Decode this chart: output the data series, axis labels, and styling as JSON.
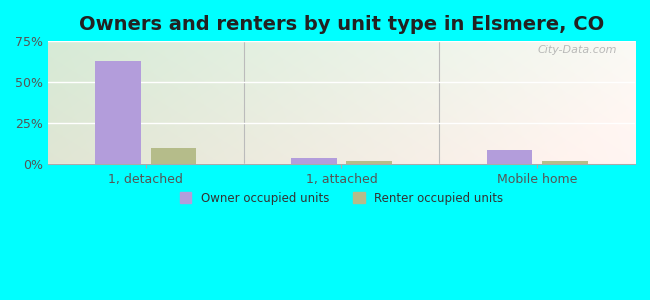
{
  "title": "Owners and renters by unit type in Elsmere, CO",
  "categories": [
    "1, detached",
    "1, attached",
    "Mobile home"
  ],
  "owner_values": [
    63.0,
    3.5,
    8.5
  ],
  "renter_values": [
    10.0,
    2.0,
    1.5
  ],
  "owner_color": "#b39ddb",
  "renter_color": "#b5bc8a",
  "ylim": [
    0,
    75
  ],
  "yticks": [
    0,
    25,
    50,
    75
  ],
  "yticklabels": [
    "0%",
    "25%",
    "50%",
    "75%"
  ],
  "bar_width": 0.28,
  "outer_bg": "#00ffff",
  "legend_owner": "Owner occupied units",
  "legend_renter": "Renter occupied units",
  "watermark": "City-Data.com",
  "title_fontsize": 14,
  "axis_fontsize": 9
}
